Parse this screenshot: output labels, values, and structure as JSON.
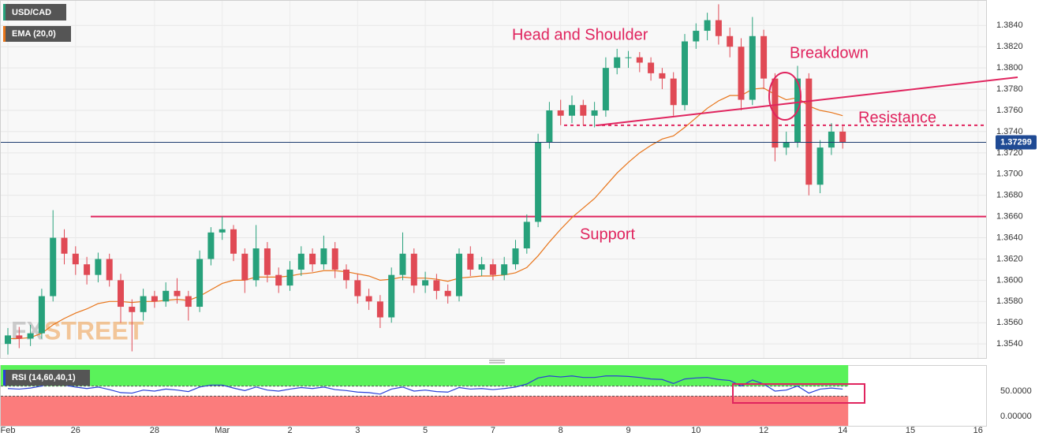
{
  "chart_data": [
    {
      "type": "candlestick",
      "title": "USD/CAD",
      "categories": [
        "Feb",
        null,
        null,
        null,
        null,
        null,
        "26",
        null,
        null,
        null,
        null,
        null,
        null,
        "28",
        null,
        null,
        null,
        null,
        null,
        "Mar",
        null,
        null,
        null,
        null,
        null,
        "2",
        null,
        null,
        null,
        null,
        null,
        "3",
        null,
        null,
        null,
        null,
        null,
        "5",
        null,
        null,
        null,
        null,
        null,
        "7",
        null,
        null,
        null,
        null,
        null,
        "8",
        null,
        null,
        null,
        null,
        null,
        "9",
        null,
        null,
        null,
        null,
        null,
        "10",
        null,
        null,
        null,
        null,
        null,
        "12",
        null,
        null,
        null,
        null,
        null,
        null,
        "14",
        null,
        null,
        null,
        null,
        null,
        "15",
        null,
        null,
        null,
        null,
        null,
        "16"
      ],
      "open": [
        1.354,
        1.3548,
        1.3545,
        1.355,
        1.3585,
        1.364,
        1.3625,
        1.3615,
        1.3605,
        1.362,
        1.36,
        1.3575,
        1.357,
        1.3585,
        1.358,
        1.359,
        1.3585,
        1.3575,
        1.362,
        1.3645,
        1.3648,
        1.3625,
        1.36,
        1.363,
        1.3605,
        1.3595,
        1.361,
        1.3625,
        1.3615,
        1.363,
        1.361,
        1.36,
        1.3585,
        1.358,
        1.3565,
        1.3605,
        1.3625,
        1.3595,
        1.36,
        1.359,
        1.3585,
        1.3625,
        1.361,
        1.3615,
        1.3605,
        1.3615,
        1.363,
        1.3655,
        1.373,
        1.376,
        1.3755,
        1.3765,
        1.3755,
        1.376,
        1.38,
        1.381,
        1.381,
        1.3805,
        1.3795,
        1.379,
        1.3765,
        1.3825,
        1.3835,
        1.3845,
        1.383,
        1.382,
        1.377,
        1.383,
        1.379,
        1.3725,
        1.373,
        1.379,
        1.369,
        1.3725,
        1.374,
        null,
        null,
        null,
        null,
        null,
        null,
        null,
        null,
        null,
        null,
        null,
        null
      ],
      "high": [
        1.3555,
        1.3556,
        1.3558,
        1.3592,
        1.3666,
        1.3648,
        1.3632,
        1.3622,
        1.3626,
        1.3625,
        1.3606,
        1.3582,
        1.3592,
        1.359,
        1.3598,
        1.3602,
        1.359,
        1.3628,
        1.365,
        1.366,
        1.3652,
        1.363,
        1.3652,
        1.3636,
        1.3612,
        1.3618,
        1.3632,
        1.363,
        1.3642,
        1.3636,
        1.3615,
        1.3606,
        1.3592,
        1.3586,
        1.3612,
        1.3645,
        1.363,
        1.3608,
        1.3606,
        1.3596,
        1.363,
        1.3632,
        1.3622,
        1.362,
        1.3622,
        1.3638,
        1.3662,
        1.3738,
        1.3768,
        1.377,
        1.3774,
        1.377,
        1.3768,
        1.381,
        1.3818,
        1.3816,
        1.3815,
        1.381,
        1.38,
        1.3796,
        1.3832,
        1.3842,
        1.3852,
        1.386,
        1.3838,
        1.3828,
        1.3848,
        1.3836,
        1.3795,
        1.374,
        1.3802,
        1.3795,
        1.3732,
        1.3748,
        1.3745,
        null,
        null,
        null,
        null,
        null,
        null,
        null,
        null,
        null,
        null,
        null,
        null
      ],
      "low": [
        1.353,
        1.3536,
        1.3538,
        1.3545,
        1.358,
        1.3615,
        1.3605,
        1.3596,
        1.3598,
        1.3594,
        1.356,
        1.3533,
        1.3562,
        1.3574,
        1.3575,
        1.3578,
        1.3562,
        1.357,
        1.3614,
        1.3638,
        1.3618,
        1.3588,
        1.3594,
        1.3598,
        1.3588,
        1.359,
        1.3604,
        1.3608,
        1.361,
        1.3602,
        1.3592,
        1.3578,
        1.3572,
        1.3555,
        1.356,
        1.36,
        1.3588,
        1.3588,
        1.3582,
        1.3578,
        1.358,
        1.3604,
        1.3604,
        1.36,
        1.36,
        1.361,
        1.3625,
        1.365,
        1.3724,
        1.3746,
        1.3748,
        1.3746,
        1.3744,
        1.3754,
        1.3794,
        1.38,
        1.3796,
        1.3788,
        1.378,
        1.3755,
        1.376,
        1.3818,
        1.3826,
        1.3822,
        1.381,
        1.376,
        1.3765,
        1.378,
        1.3712,
        1.3718,
        1.3725,
        1.368,
        1.3682,
        1.3718,
        1.3724,
        null,
        null,
        null,
        null,
        null,
        null,
        null,
        null,
        null,
        null,
        null,
        null
      ],
      "close": [
        1.3548,
        1.3545,
        1.355,
        1.3585,
        1.364,
        1.3625,
        1.3615,
        1.3605,
        1.362,
        1.36,
        1.3575,
        1.357,
        1.3585,
        1.358,
        1.359,
        1.3585,
        1.3575,
        1.362,
        1.3645,
        1.3648,
        1.3625,
        1.36,
        1.363,
        1.3605,
        1.3595,
        1.361,
        1.3625,
        1.3615,
        1.363,
        1.361,
        1.36,
        1.3585,
        1.358,
        1.3565,
        1.3605,
        1.3625,
        1.3595,
        1.36,
        1.359,
        1.3585,
        1.3625,
        1.361,
        1.3615,
        1.3605,
        1.3615,
        1.363,
        1.3655,
        1.373,
        1.376,
        1.3755,
        1.3765,
        1.3755,
        1.376,
        1.38,
        1.381,
        1.381,
        1.3805,
        1.3795,
        1.379,
        1.3765,
        1.3825,
        1.3835,
        1.3845,
        1.383,
        1.382,
        1.377,
        1.383,
        1.379,
        1.3725,
        1.373,
        1.379,
        1.369,
        1.3725,
        1.374,
        1.373,
        null,
        null,
        null,
        null,
        null,
        null,
        null,
        null,
        null,
        null,
        null,
        null
      ],
      "up_color": "#27a17b",
      "down_color": "#e04a55",
      "series": [
        {
          "name": "EMA (20,0)",
          "color": "#e8751a",
          "values": [
            1.3545,
            1.3545,
            1.3546,
            1.355,
            1.3558,
            1.3564,
            1.3569,
            1.3573,
            1.3578,
            1.358,
            1.358,
            1.3579,
            1.358,
            1.358,
            1.3581,
            1.3582,
            1.3581,
            1.3585,
            1.3591,
            1.3597,
            1.36,
            1.36,
            1.3603,
            1.3603,
            1.3603,
            1.3604,
            1.3606,
            1.3607,
            1.3609,
            1.3609,
            1.3608,
            1.3606,
            1.3604,
            1.36,
            1.3601,
            1.3603,
            1.3602,
            1.3602,
            1.3601,
            1.3599,
            1.3602,
            1.3603,
            1.3604,
            1.3604,
            1.3605,
            1.3607,
            1.3612,
            1.3623,
            1.3636,
            1.3648,
            1.3659,
            1.3668,
            1.3677,
            1.3689,
            1.3701,
            1.3711,
            1.372,
            1.3727,
            1.3733,
            1.3736,
            1.3744,
            1.3753,
            1.3762,
            1.3769,
            1.3774,
            1.3774,
            1.378,
            1.3781,
            1.3775,
            1.377,
            1.3772,
            1.3764,
            1.376,
            1.3758,
            1.3755,
            null,
            null,
            null,
            null,
            null,
            null,
            null,
            null,
            null,
            null,
            null,
            null
          ]
        }
      ],
      "ylim": [
        1.3526,
        1.3864
      ],
      "yticks": [
        {
          "value": 1.354,
          "label": "1.3540"
        },
        {
          "value": 1.356,
          "label": "1.3560"
        },
        {
          "value": 1.358,
          "label": "1.3580"
        },
        {
          "value": 1.36,
          "label": "1.3600"
        },
        {
          "value": 1.362,
          "label": "1.3620"
        },
        {
          "value": 1.364,
          "label": "1.3640"
        },
        {
          "value": 1.366,
          "label": "1.3660"
        },
        {
          "value": 1.368,
          "label": "1.3680"
        },
        {
          "value": 1.37,
          "label": "1.3700"
        },
        {
          "value": 1.372,
          "label": "1.3720"
        },
        {
          "value": 1.374,
          "label": "1.3740"
        },
        {
          "value": 1.376,
          "label": "1.3760"
        },
        {
          "value": 1.378,
          "label": "1.3780"
        },
        {
          "value": 1.38,
          "label": "1.3800"
        },
        {
          "value": 1.382,
          "label": "1.3820"
        },
        {
          "value": 1.384,
          "label": "1.3840"
        }
      ],
      "grid": true,
      "last_price": 1.37299,
      "support": 1.366,
      "resistance": 1.3746,
      "annotations": [
        "Head and Shoulder",
        "Breakdown",
        "Resistance",
        "Support"
      ],
      "watermark": [
        "FX",
        "STREET"
      ]
    },
    {
      "type": "line",
      "title": "RSI (14,60,40,1)",
      "color": "#2a3fd6",
      "values": [
        55,
        54,
        56,
        60,
        68,
        62,
        58,
        55,
        58,
        53,
        47,
        46,
        52,
        50,
        54,
        52,
        49,
        58,
        62,
        62,
        56,
        51,
        58,
        52,
        50,
        54,
        57,
        55,
        58,
        53,
        51,
        48,
        47,
        44,
        54,
        58,
        50,
        52,
        49,
        48,
        57,
        54,
        55,
        53,
        55,
        58,
        64,
        76,
        80,
        78,
        80,
        77,
        77,
        80,
        80,
        79,
        77,
        74,
        73,
        65,
        74,
        76,
        77,
        73,
        71,
        60,
        72,
        64,
        50,
        52,
        60,
        46,
        54,
        56,
        54
      ],
      "ylim": [
        -18.75,
        101.5
      ],
      "yticks": [
        {
          "value": 50,
          "label": "50.0000"
        },
        {
          "value": 0,
          "label": "0.00000"
        }
      ],
      "upper": 60,
      "lower": 40,
      "upper_color": "#5af25a",
      "lower_color": "#fb7c7c"
    }
  ]
}
